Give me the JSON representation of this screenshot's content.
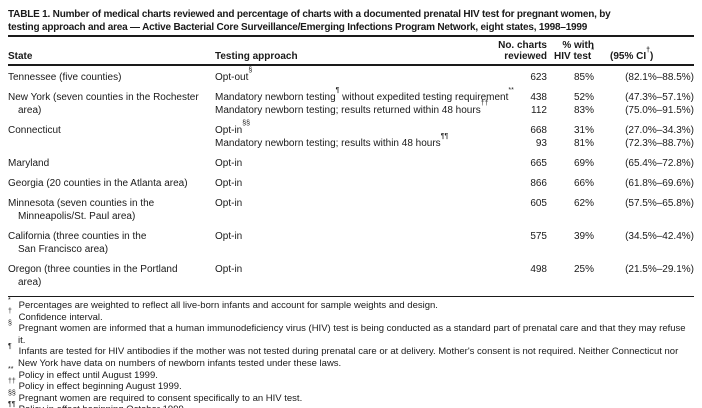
{
  "colors": {
    "ink": "#1a1a1a",
    "background": "#ffffff"
  },
  "table": {
    "title_lines": [
      "TABLE 1. Number of medical charts reviewed and percentage of charts with a documented prenatal HIV test for pregnant women, by",
      "testing approach and area — Active Bacterial Core Surveillance/Emerging Infections Program Network, eight states, 1998–1999"
    ],
    "columns": {
      "state": "State",
      "approach": "Testing approach",
      "charts": [
        "No. charts",
        "reviewed"
      ],
      "pct": [
        "% with",
        "HIV test"
      ],
      "pct_sup": "*",
      "ci_pre": "(95% CI",
      "ci_sup": "†",
      "ci_post": ")"
    },
    "rows": [
      {
        "state_lines": [
          "Tennessee (five counties)"
        ],
        "entries": [
          {
            "a1": "Opt-out",
            "s1": "§",
            "charts": "623",
            "pct": "85%",
            "ci": "(82.1%–88.5%)"
          }
        ]
      },
      {
        "state_lines": [
          "New York (seven counties in the Rochester",
          "area)"
        ],
        "entries": [
          {
            "a1": "Mandatory newborn testing",
            "s1": "¶",
            "a2": " without expedited testing requirement",
            "s2": "**",
            "charts": "438",
            "pct": "52%",
            "ci": "(47.3%–57.1%)"
          },
          {
            "a1": "Mandatory newborn testing; results returned within 48 hours",
            "s1": "††",
            "charts": "112",
            "pct": "83%",
            "ci": "(75.0%–91.5%)"
          }
        ]
      },
      {
        "state_lines": [
          "Connecticut"
        ],
        "entries": [
          {
            "a1": "Opt-in",
            "s1": "§§",
            "charts": "668",
            "pct": "31%",
            "ci": "(27.0%–34.3%)"
          },
          {
            "a1": "Mandatory newborn testing; results within 48 hours",
            "s1": "¶¶",
            "charts": "93",
            "pct": "81%",
            "ci": "(72.3%–88.7%)"
          }
        ]
      },
      {
        "state_lines": [
          "Maryland"
        ],
        "entries": [
          {
            "a1": "Opt-in",
            "charts": "665",
            "pct": "69%",
            "ci": "(65.4%–72.8%)"
          }
        ]
      },
      {
        "state_lines": [
          "Georgia (20 counties in the Atlanta area)"
        ],
        "entries": [
          {
            "a1": "Opt-in",
            "charts": "866",
            "pct": "66%",
            "ci": "(61.8%–69.6%)"
          }
        ]
      },
      {
        "state_lines": [
          "Minnesota (seven counties in the",
          "Minneapolis/St. Paul area)"
        ],
        "entries": [
          {
            "a1": "Opt-in",
            "charts": "605",
            "pct": "62%",
            "ci": "(57.5%–65.8%)"
          }
        ]
      },
      {
        "state_lines": [
          "California (three counties in the",
          "San Francisco area)"
        ],
        "entries": [
          {
            "a1": "Opt-in",
            "charts": "575",
            "pct": "39%",
            "ci": "(34.5%–42.4%)"
          }
        ]
      },
      {
        "state_lines": [
          "Oregon (three counties in the Portland",
          "area)"
        ],
        "entries": [
          {
            "a1": "Opt-in",
            "charts": "498",
            "pct": "25%",
            "ci": "(21.5%–29.1%)"
          }
        ]
      }
    ],
    "footnotes": [
      {
        "marker": "*",
        "text": "Percentages are weighted to reflect all live-born infants and account for sample weights and design."
      },
      {
        "marker": "†",
        "text": "Confidence interval."
      },
      {
        "marker": "§",
        "text": "Pregnant women are informed that a human immunodeficiency virus (HIV) test is being conducted as a standard part of prenatal care and that they may refuse it."
      },
      {
        "marker": "¶",
        "text": "Infants are tested for HIV antibodies if the mother was not tested during prenatal care or at delivery. Mother's consent is not required. Neither Connecticut nor New York have data on numbers of newborn infants tested under these laws."
      },
      {
        "marker": "**",
        "text": "Policy in effect until August 1999."
      },
      {
        "marker": "††",
        "text": "Policy in effect beginning August 1999."
      },
      {
        "marker": "§§",
        "text": "Pregnant women are required to consent specifically to an HIV test."
      },
      {
        "marker": "¶¶",
        "text": "Policy in effect beginning October 1999."
      }
    ]
  }
}
